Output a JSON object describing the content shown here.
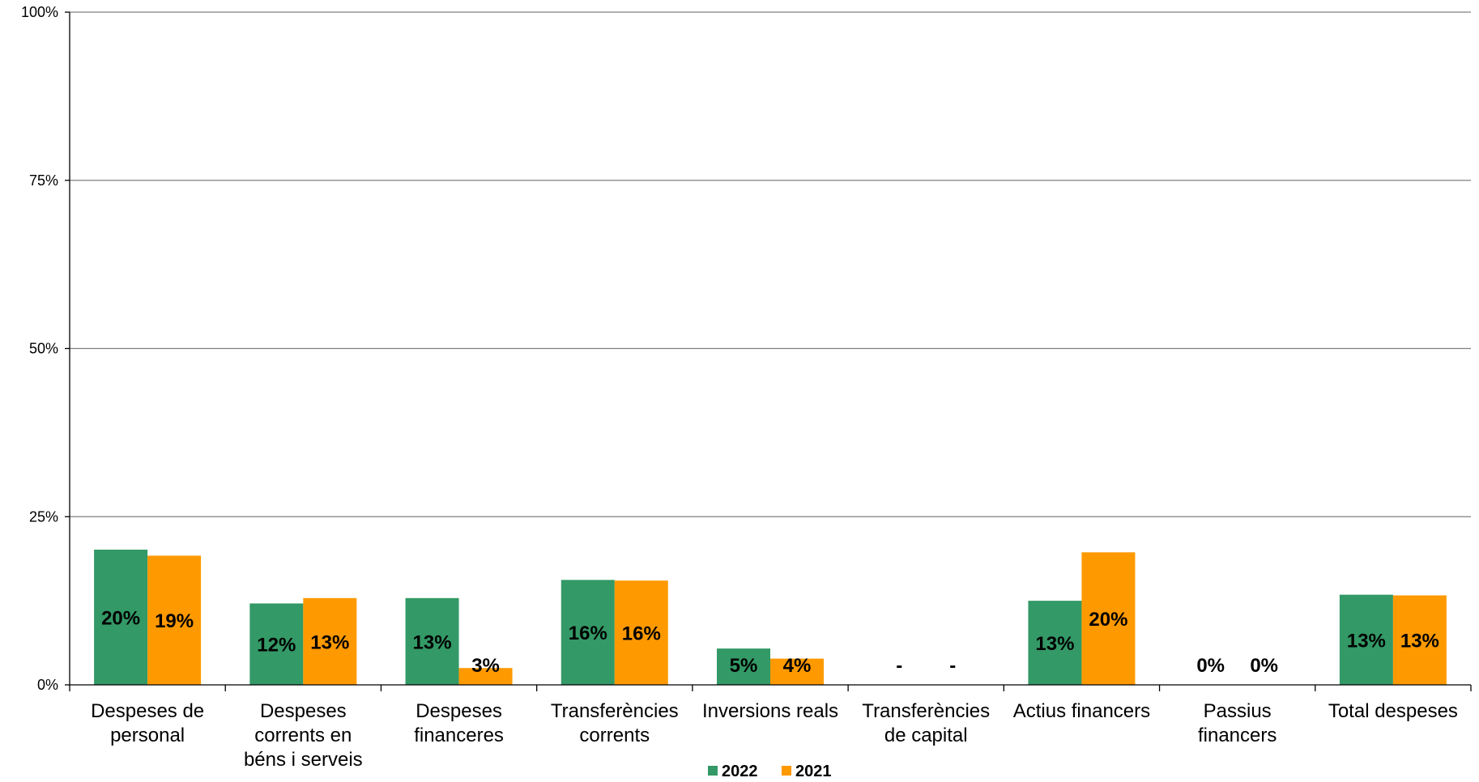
{
  "chart_data": {
    "type": "bar",
    "title": "",
    "xlabel": "",
    "ylabel": "",
    "ylim": [
      0,
      100
    ],
    "yticks": [
      "0%",
      "25%",
      "50%",
      "75%",
      "100%"
    ],
    "grid": true,
    "legend_position": "bottom",
    "categories": [
      [
        "Despeses de",
        "personal"
      ],
      [
        "Despeses",
        "corrents en",
        "béns i serveis"
      ],
      [
        "Despeses",
        "financeres"
      ],
      [
        "Transferències",
        "corrents"
      ],
      [
        "Inversions reals"
      ],
      [
        "Transferències",
        "de capital"
      ],
      [
        "Actius financers"
      ],
      [
        "Passius",
        "financers"
      ],
      [
        "Total despeses"
      ]
    ],
    "series": [
      {
        "name": "2022",
        "color": "#339966",
        "values": [
          20.1,
          12.1,
          12.9,
          15.6,
          5.4,
          0,
          12.5,
          0,
          13.4
        ],
        "labels": [
          "20%",
          "12%",
          "13%",
          "16%",
          "5%",
          "-",
          "13%",
          "0%",
          "13%"
        ]
      },
      {
        "name": "2021",
        "color": "#ff9900",
        "values": [
          19.2,
          12.9,
          2.5,
          15.5,
          3.9,
          0,
          19.7,
          0,
          13.3
        ],
        "labels": [
          "19%",
          "13%",
          "3%",
          "16%",
          "4%",
          "-",
          "20%",
          "0%",
          "13%"
        ]
      }
    ]
  }
}
